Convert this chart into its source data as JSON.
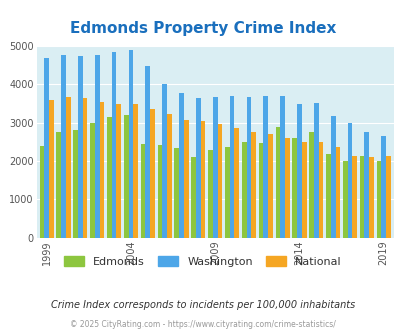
{
  "title": "Edmonds Property Crime Index",
  "title_color": "#1a6fbd",
  "subtitle": "Crime Index corresponds to incidents per 100,000 inhabitants",
  "subtitle_color": "#333333",
  "footer": "© 2025 CityRating.com - https://www.cityrating.com/crime-statistics/",
  "footer_color": "#999999",
  "years": [
    1999,
    2000,
    2001,
    2002,
    2003,
    2004,
    2005,
    2006,
    2007,
    2008,
    2009,
    2010,
    2011,
    2012,
    2013,
    2014,
    2015,
    2016,
    2017,
    2018,
    2019
  ],
  "edmonds": [
    2380,
    2750,
    2800,
    3000,
    3150,
    3200,
    2450,
    2430,
    2350,
    2100,
    2300,
    2370,
    2500,
    2460,
    2890,
    2600,
    2750,
    2180,
    2000,
    2120,
    2000
  ],
  "washington": [
    4700,
    4780,
    4750,
    4780,
    4850,
    4900,
    4470,
    4020,
    3780,
    3650,
    3680,
    3700,
    3680,
    3700,
    3700,
    3480,
    3520,
    3180,
    3000,
    2750,
    2650
  ],
  "national": [
    3600,
    3680,
    3650,
    3550,
    3490,
    3490,
    3360,
    3240,
    3070,
    3050,
    2960,
    2870,
    2760,
    2700,
    2610,
    2490,
    2490,
    2360,
    2130,
    2100,
    2130
  ],
  "edmonds_color": "#8dc63f",
  "washington_color": "#4da6e8",
  "national_color": "#f5a623",
  "plot_bg": "#daeef3",
  "ylim": [
    0,
    5000
  ],
  "yticks": [
    0,
    1000,
    2000,
    3000,
    4000,
    5000
  ],
  "bar_width": 0.28,
  "legend_labels": [
    "Edmonds",
    "Washington",
    "National"
  ],
  "tick_label_color": "#555555",
  "grid_color": "#ffffff",
  "xlabel_years": [
    1999,
    2004,
    2009,
    2014,
    2019
  ]
}
